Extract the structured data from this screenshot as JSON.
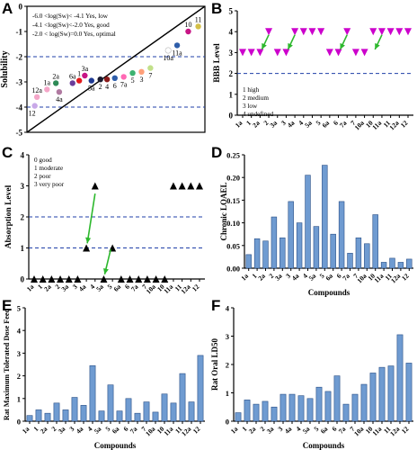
{
  "chart_data": [
    {
      "panel": "A",
      "type": "scatter",
      "title": "",
      "xlabel": "",
      "ylabel": "Solubility",
      "ylim": [
        -5,
        0
      ],
      "yticks": [
        "0",
        "-1",
        "-2",
        "-3",
        "-4",
        "-5"
      ],
      "reference_lines": [
        -2,
        -4
      ],
      "diagonal": true,
      "legend_text": [
        "-6.0 <log(Sw)< -4.1 Yes, low",
        "-4.1 <log(Sw)<-2.0 Yes, good",
        "-2.0 < log(Sw)=0.0 Yes, optimal"
      ],
      "points": [
        {
          "label": "12",
          "x": 0.35,
          "y": -3.95,
          "color": "#c8a8e8"
        },
        {
          "label": "12a",
          "x": 0.45,
          "y": -3.6,
          "color": "#f4a6c8"
        },
        {
          "label": "1a",
          "x": 0.9,
          "y": -3.3,
          "color": "#f4a6c8"
        },
        {
          "label": "2a",
          "x": 1.3,
          "y": -3.05,
          "color": "#2e8b57"
        },
        {
          "label": "4a",
          "x": 1.45,
          "y": -3.4,
          "color": "#b07aa1"
        },
        {
          "label": "6a",
          "x": 2.05,
          "y": -3.05,
          "color": "#6a3d9a"
        },
        {
          "label": "1",
          "x": 2.35,
          "y": -2.95,
          "color": "#e31a1c"
        },
        {
          "label": "3a",
          "x": 2.6,
          "y": -2.75,
          "color": "#c71585"
        },
        {
          "label": "5a",
          "x": 2.9,
          "y": -2.95,
          "color": "#1f3a93"
        },
        {
          "label": "2",
          "x": 3.3,
          "y": -2.9,
          "color": "#1a1a2e"
        },
        {
          "label": "4",
          "x": 3.6,
          "y": -2.9,
          "color": "#8b1a1a"
        },
        {
          "label": "6",
          "x": 3.95,
          "y": -2.85,
          "color": "#2e5eaa"
        },
        {
          "label": "7a",
          "x": 4.35,
          "y": -2.8,
          "color": "#ff69b4"
        },
        {
          "label": "5",
          "x": 4.75,
          "y": -2.65,
          "color": "#3cb371"
        },
        {
          "label": "3",
          "x": 5.15,
          "y": -2.6,
          "color": "#ffa07a"
        },
        {
          "label": "7",
          "x": 5.55,
          "y": -2.45,
          "color": "#c2e08a"
        },
        {
          "label": "10a",
          "x": 6.35,
          "y": -1.75,
          "color": "#ffffff"
        },
        {
          "label": "11a",
          "x": 6.75,
          "y": -1.55,
          "color": "#2e5eaa"
        },
        {
          "label": "10",
          "x": 7.25,
          "y": -1.0,
          "color": "#c71585"
        },
        {
          "label": "11",
          "x": 7.7,
          "y": -0.8,
          "color": "#d4c048"
        }
      ]
    },
    {
      "panel": "B",
      "type": "scatter",
      "xlabel": "",
      "ylabel": "BBB Level",
      "ylim": [
        0,
        5
      ],
      "categories": [
        "1a",
        "1",
        "2a",
        "2",
        "3a",
        "3",
        "4a",
        "4",
        "5a",
        "5",
        "6a",
        "6",
        "7a",
        "7",
        "10a",
        "10",
        "11a",
        "11",
        "12a",
        "12"
      ],
      "values": [
        3,
        3,
        3,
        4,
        3,
        3,
        4,
        4,
        4,
        4,
        3,
        3,
        4,
        3,
        3,
        4,
        4,
        4,
        4,
        4
      ],
      "reference_lines": [
        2
      ],
      "legend_text": [
        "1 high",
        "2 medium",
        "3 low",
        "4 undefined"
      ],
      "marker_color": "#cc00cc"
    },
    {
      "panel": "C",
      "type": "scatter",
      "xlabel": "",
      "ylabel": "Absorption Level",
      "ylim": [
        0,
        4
      ],
      "categories": [
        "1a",
        "1",
        "2a",
        "2",
        "3a",
        "3",
        "4a",
        "4",
        "5a",
        "5",
        "6a",
        "6",
        "7a",
        "7",
        "10a",
        "10",
        "11a",
        "11",
        "12a",
        "12"
      ],
      "values": [
        0,
        0,
        0,
        0,
        0,
        0,
        1,
        3,
        0,
        1,
        0,
        0,
        0,
        0,
        0,
        0,
        3,
        3,
        3,
        3
      ],
      "reference_lines": [
        1,
        2
      ],
      "legend_text": [
        "0 good",
        "1 moderate",
        "2 poor",
        "3 very poor"
      ],
      "marker_color": "#000000"
    },
    {
      "panel": "D",
      "type": "bar",
      "xlabel": "Compounds",
      "ylabel": "Chronic LOAEL",
      "ylim": [
        0,
        0.25
      ],
      "yticks": [
        "0.00",
        "0.05",
        "0.10",
        "0.15",
        "0.20",
        "0.25"
      ],
      "categories": [
        "1a",
        "1",
        "2a",
        "2",
        "3a",
        "3",
        "4a",
        "4",
        "5a",
        "5",
        "6a",
        "6",
        "7a",
        "7",
        "10a",
        "10",
        "11a",
        "11",
        "12a",
        "12"
      ],
      "values": [
        0.03,
        0.065,
        0.06,
        0.113,
        0.067,
        0.147,
        0.1,
        0.205,
        0.092,
        0.227,
        0.075,
        0.147,
        0.033,
        0.067,
        0.054,
        0.118,
        0.013,
        0.022,
        0.013,
        0.02
      ],
      "bar_color": "#6f9bd1"
    },
    {
      "panel": "E",
      "type": "bar",
      "xlabel": "Compounds",
      "ylabel": "Rat Maximum Tolerated Dose Feed",
      "ylim": [
        0,
        5
      ],
      "yticks": [
        "0",
        "1",
        "2",
        "3",
        "4",
        "5"
      ],
      "categories": [
        "1a",
        "1",
        "2a",
        "2",
        "3a",
        "3",
        "4a",
        "4",
        "5a",
        "5",
        "6a",
        "6",
        "7a",
        "7",
        "10a",
        "10",
        "11a",
        "11",
        "12a",
        "12"
      ],
      "values": [
        0.25,
        0.5,
        0.35,
        0.8,
        0.5,
        1.05,
        0.7,
        2.45,
        0.45,
        1.6,
        0.45,
        1.0,
        0.35,
        0.85,
        0.4,
        1.2,
        0.8,
        2.1,
        0.85,
        2.9
      ],
      "bar_color": "#6f9bd1"
    },
    {
      "panel": "F",
      "type": "bar",
      "xlabel": "Compounds",
      "ylabel": "Rat Oral LD50",
      "ylim": [
        0,
        4
      ],
      "yticks": [
        "0",
        "1",
        "2",
        "3",
        "4"
      ],
      "categories": [
        "1a",
        "1",
        "2a",
        "2",
        "3a",
        "3",
        "4a",
        "4",
        "5a",
        "5",
        "6a",
        "6",
        "7a",
        "7",
        "10a",
        "10",
        "11a",
        "11",
        "12a",
        "12"
      ],
      "values": [
        0.3,
        0.75,
        0.6,
        0.7,
        0.5,
        0.95,
        0.95,
        0.9,
        0.8,
        1.2,
        1.05,
        1.6,
        0.6,
        0.95,
        1.3,
        1.7,
        1.9,
        1.95,
        3.05,
        2.05
      ],
      "bar_color": "#6f9bd1"
    }
  ]
}
